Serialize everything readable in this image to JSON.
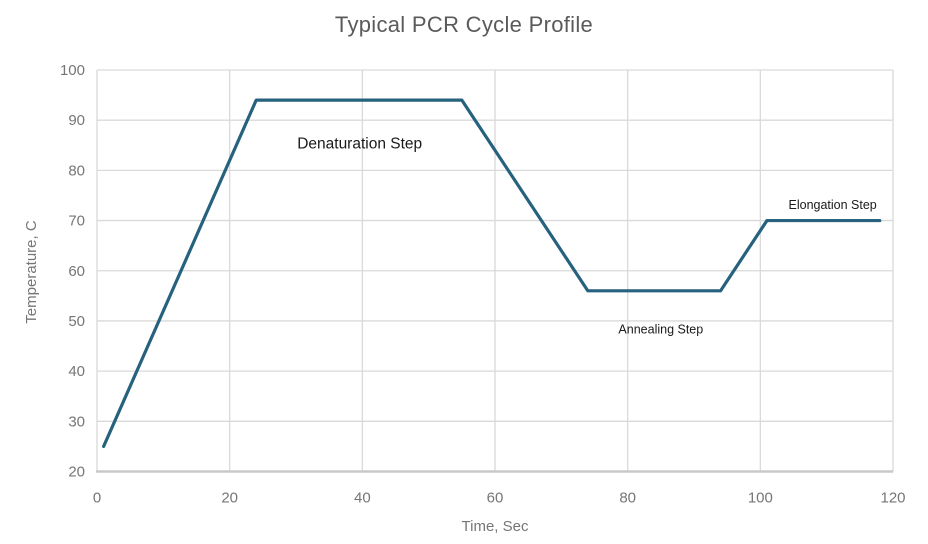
{
  "chart_data": {
    "type": "line",
    "title": "Typical PCR Cycle Profile",
    "xlabel": "Time, Sec",
    "ylabel": "Temperature, C",
    "xlim": [
      0,
      120
    ],
    "ylim": [
      20,
      100
    ],
    "xticks": [
      0,
      20,
      40,
      60,
      80,
      100,
      120
    ],
    "yticks": [
      20,
      30,
      40,
      50,
      60,
      70,
      80,
      90,
      100
    ],
    "grid": true,
    "legend": "none",
    "series": [
      {
        "name": "PCR temperature profile",
        "points": [
          [
            1,
            25
          ],
          [
            24,
            94
          ],
          [
            55,
            94
          ],
          [
            74,
            56
          ],
          [
            94,
            56
          ],
          [
            101,
            70
          ],
          [
            118,
            70
          ]
        ]
      }
    ],
    "annotations": [
      {
        "id": "denaturation-step",
        "text": "Denaturation Step",
        "x": 39.6,
        "y": 84.4,
        "size": 15.5
      },
      {
        "id": "annealing-step",
        "text": "Annealing Step",
        "x": 85.0,
        "y": 47.5,
        "size": 12.5
      },
      {
        "id": "elongation-step",
        "text": "Elongation Step",
        "x": 110.9,
        "y": 72.3,
        "size": 12.5
      }
    ],
    "colors": {
      "line": "#26617E",
      "grid": "#D9D9D9",
      "axis": "#C9C9C9",
      "tick_label": "#767676",
      "axis_title": "#767676",
      "title": "#5A5A5A",
      "annotation": "#1A1A1A",
      "background": "#FFFFFF"
    }
  }
}
